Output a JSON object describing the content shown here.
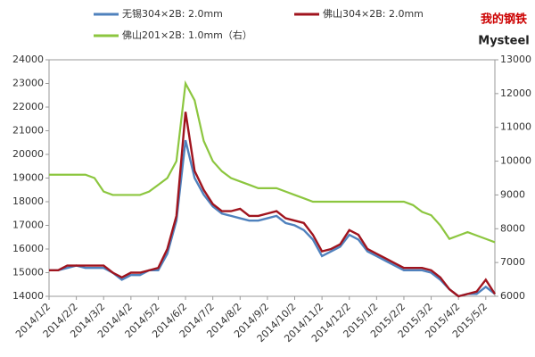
{
  "chart_data": {
    "type": "line",
    "logo": "Mysteel",
    "logo_mark": "我的钢铁",
    "categories": [
      "2014/1/2",
      null,
      null,
      "2014/2/2",
      null,
      null,
      "2014/3/2",
      null,
      null,
      "2014/4/2",
      null,
      null,
      "2014/5/2",
      null,
      null,
      "2014/6/2",
      null,
      null,
      "2014/7/2",
      null,
      null,
      "2014/8/2",
      null,
      null,
      "2014/9/2",
      null,
      null,
      "2014/10/2",
      null,
      null,
      "2014/11/2",
      null,
      null,
      "2014/12/2",
      null,
      null,
      "2015/1/2",
      null,
      null,
      "2015/2/2",
      null,
      null,
      "2015/3/2",
      null,
      null,
      "2015/4/2",
      null,
      null,
      "2015/5/2",
      null
    ],
    "series": [
      {
        "name": "无锡304×2B: 2.0mm",
        "color": "#4f81bd",
        "values": [
          15100,
          15100,
          15200,
          15300,
          15200,
          15200,
          15200,
          15000,
          14700,
          14900,
          14900,
          15100,
          15100,
          15800,
          17200,
          20600,
          19000,
          18300,
          17800,
          17500,
          17400,
          17300,
          17200,
          17200,
          17300,
          17400,
          17100,
          17000,
          16800,
          16400,
          15700,
          15900,
          16100,
          16600,
          16400,
          15900,
          15700,
          15500,
          15300,
          15100,
          15100,
          15100,
          15000,
          14700,
          14300,
          14000,
          14100,
          14100,
          14400,
          14100
        ]
      },
      {
        "name": "佛山304×2B: 2.0mm",
        "color": "#a0141e",
        "values": [
          15100,
          15100,
          15300,
          15300,
          15300,
          15300,
          15300,
          15000,
          14800,
          15000,
          15000,
          15100,
          15200,
          16000,
          17400,
          21800,
          19300,
          18500,
          17900,
          17600,
          17600,
          17700,
          17400,
          17400,
          17500,
          17600,
          17300,
          17200,
          17100,
          16600,
          15900,
          16000,
          16200,
          16800,
          16600,
          16000,
          15800,
          15600,
          15400,
          15200,
          15200,
          15200,
          15100,
          14800,
          14300,
          14000,
          14100,
          14200,
          14700,
          14100
        ]
      },
      {
        "name": "佛山201×2B: 1.0mm（右）",
        "color": "#8cc63f",
        "axis": "y2",
        "values": [
          9600,
          9600,
          9600,
          9600,
          9600,
          9500,
          9100,
          9000,
          9000,
          9000,
          9000,
          9100,
          9300,
          9500,
          10000,
          12300,
          11800,
          10600,
          10000,
          9700,
          9500,
          9400,
          9300,
          9200,
          9200,
          9200,
          9100,
          9000,
          8900,
          8800,
          8800,
          8800,
          8800,
          8800,
          8800,
          8800,
          8800,
          8800,
          8800,
          8800,
          8700,
          8500,
          8400,
          8100,
          7700,
          7800,
          7900,
          7800,
          7700,
          7600
        ]
      }
    ],
    "ylim": [
      14000,
      24000
    ],
    "yticks": [
      14000,
      15000,
      16000,
      17000,
      18000,
      19000,
      20000,
      21000,
      22000,
      23000,
      24000
    ],
    "y2lim": [
      6000,
      13000
    ],
    "y2ticks": [
      6000,
      7000,
      8000,
      9000,
      10000,
      11000,
      12000,
      13000
    ],
    "legend": "top"
  }
}
